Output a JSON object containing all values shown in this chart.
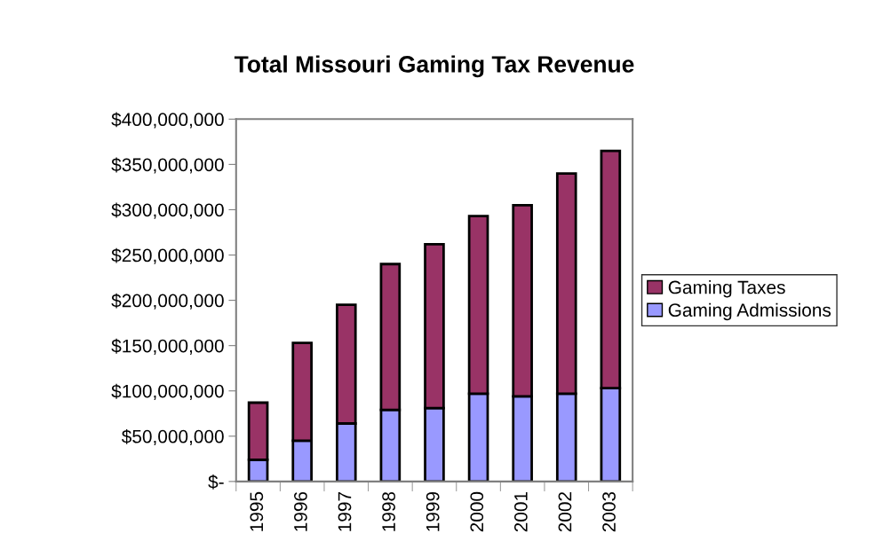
{
  "chart_data": {
    "type": "bar",
    "title": "Total Missouri Gaming Tax Revenue",
    "stacked": true,
    "categories": [
      "1995",
      "1996",
      "1997",
      "1998",
      "1999",
      "2000",
      "2001",
      "2002",
      "2003"
    ],
    "series": [
      {
        "name": "Gaming Admissions",
        "color": "#9999ff",
        "values": [
          24000000,
          45000000,
          64000000,
          79000000,
          81000000,
          97000000,
          94000000,
          97000000,
          103000000
        ]
      },
      {
        "name": "Gaming Taxes",
        "color": "#993366",
        "values": [
          63000000,
          108000000,
          131000000,
          161000000,
          181000000,
          196000000,
          211000000,
          243000000,
          262000000
        ]
      }
    ],
    "ylim": [
      0,
      400000000
    ],
    "yticks": [
      {
        "value": 0,
        "label": "$-"
      },
      {
        "value": 50000000,
        "label": "$50,000,000"
      },
      {
        "value": 100000000,
        "label": "$100,000,000"
      },
      {
        "value": 150000000,
        "label": "$150,000,000"
      },
      {
        "value": 200000000,
        "label": "$200,000,000"
      },
      {
        "value": 250000000,
        "label": "$250,000,000"
      },
      {
        "value": 300000000,
        "label": "$300,000,000"
      },
      {
        "value": 350000000,
        "label": "$350,000,000"
      },
      {
        "value": 400000000,
        "label": "$400,000,000"
      }
    ],
    "grid": false,
    "legend": "right"
  }
}
